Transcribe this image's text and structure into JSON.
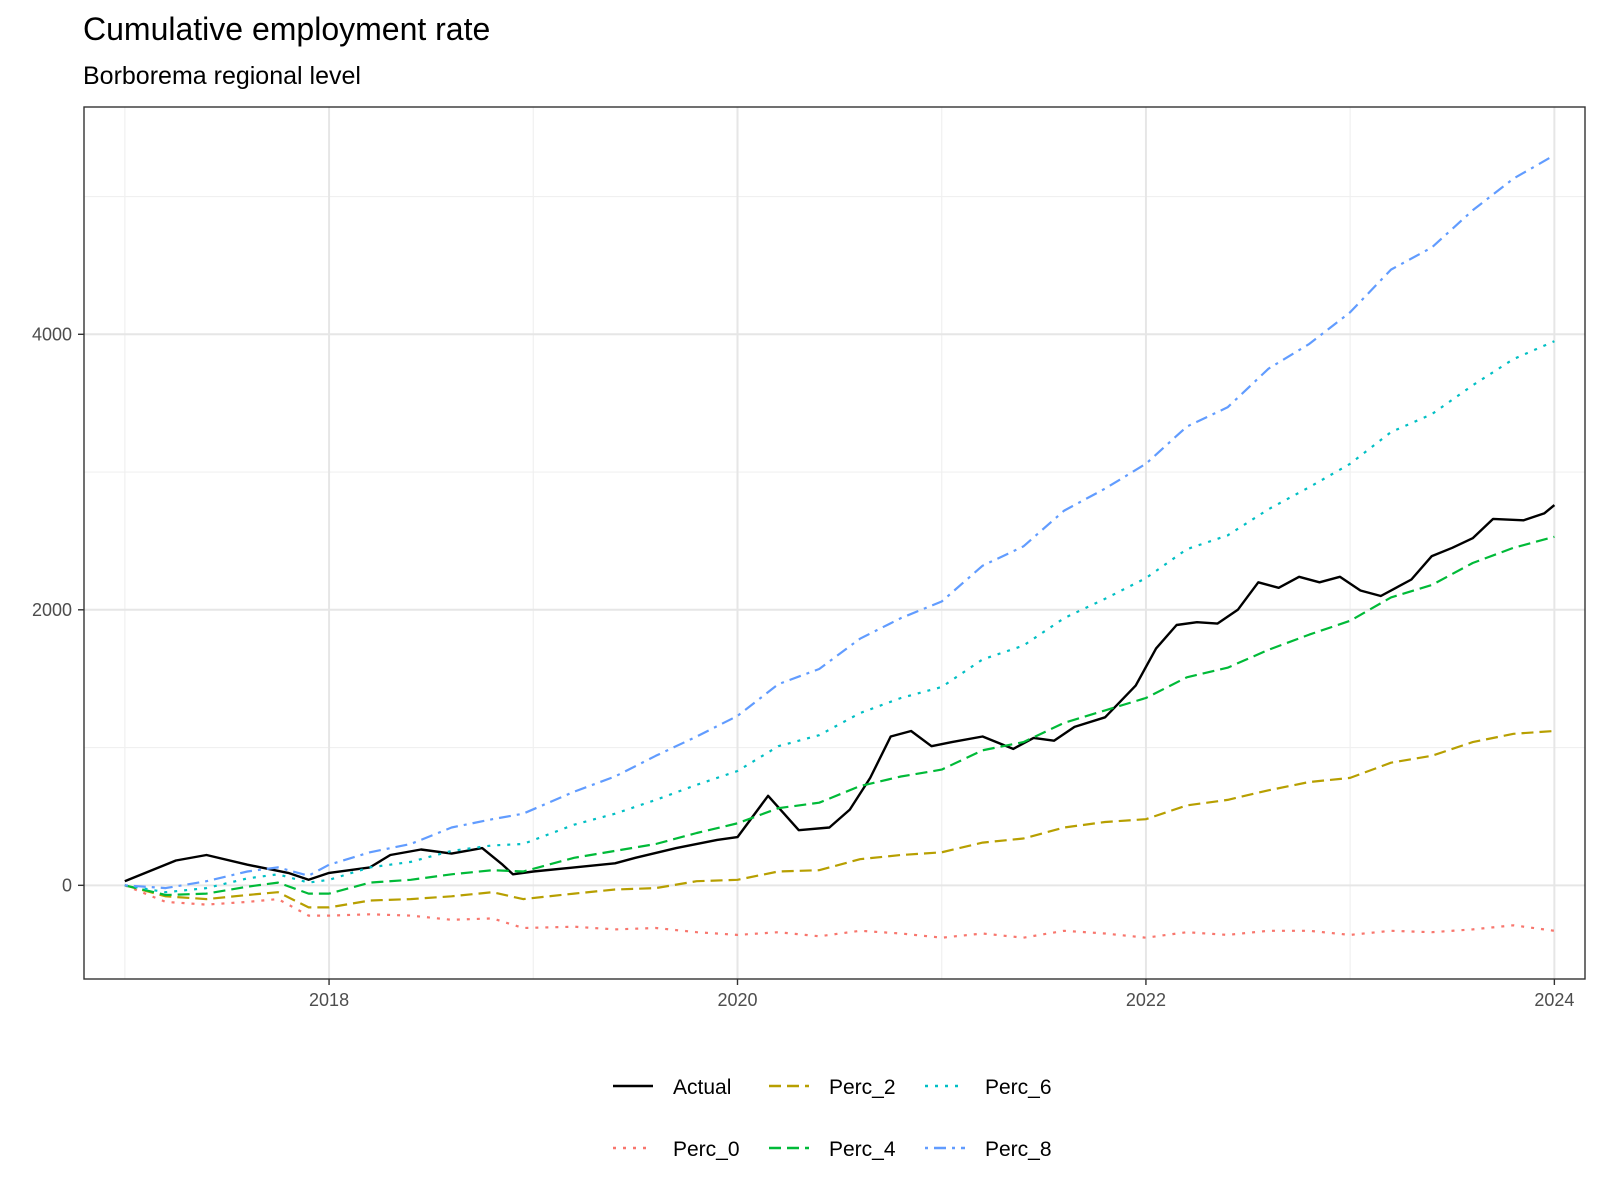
{
  "chart_data": {
    "type": "line",
    "title": "Cumulative employment rate",
    "subtitle": "Borborema regional level",
    "xlabel": "",
    "ylabel": "",
    "xlim": [
      2016.8,
      2024.15
    ],
    "ylim": [
      -680,
      5650
    ],
    "x_ticks": [
      2018,
      2020,
      2022,
      2024
    ],
    "x_tick_labels": [
      "2018",
      "2020",
      "2022",
      "2024"
    ],
    "y_ticks": [
      0,
      2000,
      4000
    ],
    "y_tick_labels": [
      "0",
      "2000",
      "4000"
    ],
    "y_minor_ticks": [
      1000,
      3000,
      5000
    ],
    "x_minor_ticks": [
      2017,
      2019,
      2021,
      2023
    ],
    "grid": true,
    "legend_position": "bottom",
    "colors": {
      "Actual": "#000000",
      "Perc_0": "#F8766D",
      "Perc_2": "#B79F00",
      "Perc_4": "#00BA38",
      "Perc_6": "#00BFC4",
      "Perc_8": "#619CFF"
    },
    "linetypes": {
      "Actual": "solid",
      "Perc_0": "dotted",
      "Perc_2": "dashed",
      "Perc_4": "dashed",
      "Perc_6": "dotted",
      "Perc_8": "dotdash"
    },
    "legend_rows": [
      [
        "Actual",
        "Perc_2",
        "Perc_6"
      ],
      [
        "Perc_0",
        "Perc_4",
        "Perc_8"
      ]
    ],
    "series": [
      {
        "name": "Actual",
        "points": [
          [
            2017.0,
            30
          ],
          [
            2017.25,
            180
          ],
          [
            2017.4,
            220
          ],
          [
            2017.6,
            150
          ],
          [
            2017.8,
            90
          ],
          [
            2017.9,
            40
          ],
          [
            2018.0,
            90
          ],
          [
            2018.2,
            130
          ],
          [
            2018.3,
            220
          ],
          [
            2018.45,
            260
          ],
          [
            2018.6,
            230
          ],
          [
            2018.75,
            270
          ],
          [
            2018.85,
            150
          ],
          [
            2018.9,
            80
          ],
          [
            2019.0,
            100
          ],
          [
            2019.2,
            130
          ],
          [
            2019.4,
            160
          ],
          [
            2019.5,
            200
          ],
          [
            2019.7,
            270
          ],
          [
            2019.9,
            330
          ],
          [
            2020.0,
            350
          ],
          [
            2020.15,
            650
          ],
          [
            2020.3,
            400
          ],
          [
            2020.45,
            420
          ],
          [
            2020.55,
            550
          ],
          [
            2020.65,
            780
          ],
          [
            2020.75,
            1080
          ],
          [
            2020.85,
            1120
          ],
          [
            2020.95,
            1010
          ],
          [
            2021.05,
            1040
          ],
          [
            2021.2,
            1080
          ],
          [
            2021.35,
            990
          ],
          [
            2021.45,
            1070
          ],
          [
            2021.55,
            1050
          ],
          [
            2021.65,
            1150
          ],
          [
            2021.8,
            1220
          ],
          [
            2021.95,
            1450
          ],
          [
            2022.05,
            1720
          ],
          [
            2022.15,
            1890
          ],
          [
            2022.25,
            1910
          ],
          [
            2022.35,
            1900
          ],
          [
            2022.45,
            2000
          ],
          [
            2022.55,
            2200
          ],
          [
            2022.65,
            2160
          ],
          [
            2022.75,
            2240
          ],
          [
            2022.85,
            2200
          ],
          [
            2022.95,
            2240
          ],
          [
            2023.05,
            2140
          ],
          [
            2023.15,
            2100
          ],
          [
            2023.3,
            2220
          ],
          [
            2023.4,
            2390
          ],
          [
            2023.5,
            2450
          ],
          [
            2023.6,
            2520
          ],
          [
            2023.7,
            2660
          ],
          [
            2023.85,
            2650
          ],
          [
            2023.95,
            2700
          ],
          [
            2024.0,
            2760
          ]
        ]
      },
      {
        "name": "Perc_0",
        "points": [
          [
            2017.0,
            0
          ],
          [
            2017.2,
            -120
          ],
          [
            2017.4,
            -140
          ],
          [
            2017.6,
            -120
          ],
          [
            2017.75,
            -100
          ],
          [
            2017.9,
            -220
          ],
          [
            2018.0,
            -220
          ],
          [
            2018.2,
            -210
          ],
          [
            2018.4,
            -220
          ],
          [
            2018.6,
            -250
          ],
          [
            2018.8,
            -240
          ],
          [
            2018.95,
            -310
          ],
          [
            2019.2,
            -300
          ],
          [
            2019.4,
            -320
          ],
          [
            2019.6,
            -310
          ],
          [
            2019.8,
            -340
          ],
          [
            2020.0,
            -360
          ],
          [
            2020.2,
            -340
          ],
          [
            2020.4,
            -370
          ],
          [
            2020.6,
            -330
          ],
          [
            2020.8,
            -350
          ],
          [
            2021.0,
            -380
          ],
          [
            2021.2,
            -350
          ],
          [
            2021.4,
            -380
          ],
          [
            2021.6,
            -330
          ],
          [
            2021.8,
            -350
          ],
          [
            2022.0,
            -380
          ],
          [
            2022.2,
            -340
          ],
          [
            2022.4,
            -360
          ],
          [
            2022.6,
            -330
          ],
          [
            2022.8,
            -330
          ],
          [
            2023.0,
            -360
          ],
          [
            2023.2,
            -330
          ],
          [
            2023.4,
            -340
          ],
          [
            2023.6,
            -320
          ],
          [
            2023.8,
            -290
          ],
          [
            2024.0,
            -330
          ]
        ]
      },
      {
        "name": "Perc_2",
        "points": [
          [
            2017.0,
            0
          ],
          [
            2017.2,
            -80
          ],
          [
            2017.4,
            -100
          ],
          [
            2017.6,
            -70
          ],
          [
            2017.75,
            -50
          ],
          [
            2017.9,
            -160
          ],
          [
            2018.0,
            -160
          ],
          [
            2018.2,
            -110
          ],
          [
            2018.4,
            -100
          ],
          [
            2018.6,
            -80
          ],
          [
            2018.8,
            -50
          ],
          [
            2018.95,
            -100
          ],
          [
            2019.2,
            -60
          ],
          [
            2019.4,
            -30
          ],
          [
            2019.6,
            -20
          ],
          [
            2019.8,
            30
          ],
          [
            2020.0,
            40
          ],
          [
            2020.2,
            100
          ],
          [
            2020.4,
            110
          ],
          [
            2020.6,
            190
          ],
          [
            2020.8,
            220
          ],
          [
            2021.0,
            240
          ],
          [
            2021.2,
            310
          ],
          [
            2021.4,
            340
          ],
          [
            2021.6,
            420
          ],
          [
            2021.8,
            460
          ],
          [
            2022.0,
            480
          ],
          [
            2022.2,
            580
          ],
          [
            2022.4,
            620
          ],
          [
            2022.6,
            690
          ],
          [
            2022.8,
            750
          ],
          [
            2023.0,
            780
          ],
          [
            2023.2,
            890
          ],
          [
            2023.4,
            940
          ],
          [
            2023.6,
            1040
          ],
          [
            2023.8,
            1100
          ],
          [
            2024.0,
            1120
          ]
        ]
      },
      {
        "name": "Perc_4",
        "points": [
          [
            2017.0,
            0
          ],
          [
            2017.2,
            -70
          ],
          [
            2017.4,
            -60
          ],
          [
            2017.6,
            -10
          ],
          [
            2017.75,
            20
          ],
          [
            2017.9,
            -60
          ],
          [
            2018.0,
            -60
          ],
          [
            2018.2,
            20
          ],
          [
            2018.4,
            40
          ],
          [
            2018.6,
            80
          ],
          [
            2018.8,
            110
          ],
          [
            2018.95,
            100
          ],
          [
            2019.2,
            200
          ],
          [
            2019.4,
            250
          ],
          [
            2019.6,
            300
          ],
          [
            2019.8,
            380
          ],
          [
            2020.0,
            450
          ],
          [
            2020.2,
            560
          ],
          [
            2020.4,
            600
          ],
          [
            2020.6,
            720
          ],
          [
            2020.8,
            790
          ],
          [
            2021.0,
            840
          ],
          [
            2021.2,
            980
          ],
          [
            2021.4,
            1040
          ],
          [
            2021.6,
            1180
          ],
          [
            2021.8,
            1270
          ],
          [
            2022.0,
            1360
          ],
          [
            2022.2,
            1510
          ],
          [
            2022.4,
            1580
          ],
          [
            2022.6,
            1710
          ],
          [
            2022.8,
            1820
          ],
          [
            2023.0,
            1920
          ],
          [
            2023.2,
            2090
          ],
          [
            2023.4,
            2180
          ],
          [
            2023.6,
            2340
          ],
          [
            2023.8,
            2450
          ],
          [
            2024.0,
            2530
          ]
        ]
      },
      {
        "name": "Perc_6",
        "points": [
          [
            2017.0,
            0
          ],
          [
            2017.2,
            -50
          ],
          [
            2017.4,
            -20
          ],
          [
            2017.6,
            50
          ],
          [
            2017.75,
            80
          ],
          [
            2017.9,
            20
          ],
          [
            2018.0,
            40
          ],
          [
            2018.2,
            130
          ],
          [
            2018.4,
            170
          ],
          [
            2018.6,
            250
          ],
          [
            2018.8,
            290
          ],
          [
            2018.95,
            300
          ],
          [
            2019.2,
            440
          ],
          [
            2019.4,
            520
          ],
          [
            2019.6,
            620
          ],
          [
            2019.8,
            730
          ],
          [
            2020.0,
            830
          ],
          [
            2020.2,
            1010
          ],
          [
            2020.4,
            1090
          ],
          [
            2020.6,
            1250
          ],
          [
            2020.8,
            1360
          ],
          [
            2021.0,
            1440
          ],
          [
            2021.2,
            1640
          ],
          [
            2021.4,
            1740
          ],
          [
            2021.6,
            1940
          ],
          [
            2021.8,
            2080
          ],
          [
            2022.0,
            2230
          ],
          [
            2022.2,
            2440
          ],
          [
            2022.4,
            2540
          ],
          [
            2022.6,
            2730
          ],
          [
            2022.8,
            2890
          ],
          [
            2023.0,
            3060
          ],
          [
            2023.2,
            3290
          ],
          [
            2023.4,
            3420
          ],
          [
            2023.6,
            3630
          ],
          [
            2023.8,
            3820
          ],
          [
            2024.0,
            3950
          ]
        ]
      },
      {
        "name": "Perc_8",
        "points": [
          [
            2017.0,
            0
          ],
          [
            2017.2,
            -20
          ],
          [
            2017.4,
            30
          ],
          [
            2017.6,
            100
          ],
          [
            2017.75,
            130
          ],
          [
            2017.9,
            70
          ],
          [
            2018.0,
            150
          ],
          [
            2018.2,
            240
          ],
          [
            2018.4,
            300
          ],
          [
            2018.6,
            420
          ],
          [
            2018.8,
            480
          ],
          [
            2018.95,
            520
          ],
          [
            2019.2,
            680
          ],
          [
            2019.4,
            790
          ],
          [
            2019.6,
            940
          ],
          [
            2019.8,
            1080
          ],
          [
            2020.0,
            1230
          ],
          [
            2020.2,
            1460
          ],
          [
            2020.4,
            1570
          ],
          [
            2020.6,
            1790
          ],
          [
            2020.8,
            1940
          ],
          [
            2021.0,
            2060
          ],
          [
            2021.2,
            2320
          ],
          [
            2021.4,
            2460
          ],
          [
            2021.6,
            2720
          ],
          [
            2021.8,
            2880
          ],
          [
            2022.0,
            3060
          ],
          [
            2022.2,
            3330
          ],
          [
            2022.4,
            3470
          ],
          [
            2022.6,
            3750
          ],
          [
            2022.8,
            3930
          ],
          [
            2023.0,
            4160
          ],
          [
            2023.2,
            4470
          ],
          [
            2023.4,
            4630
          ],
          [
            2023.6,
            4900
          ],
          [
            2023.8,
            5130
          ],
          [
            2024.0,
            5300
          ]
        ]
      }
    ]
  }
}
